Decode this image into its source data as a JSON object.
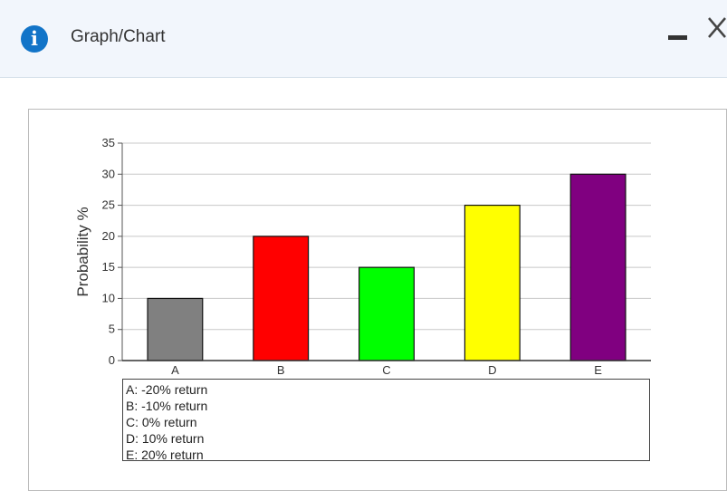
{
  "window": {
    "title": "Graph/Chart",
    "info_icon": "info-icon",
    "minimize_icon": "minimize-icon",
    "close_icon": "close-icon"
  },
  "chart_data": {
    "type": "bar",
    "categories": [
      "A",
      "B",
      "C",
      "D",
      "E"
    ],
    "values": [
      10,
      20,
      15,
      25,
      30
    ],
    "colors": [
      "#808080",
      "#ff0000",
      "#00ff00",
      "#ffff00",
      "#800080"
    ],
    "ylabel": "Probability %",
    "ylim": [
      0,
      35
    ],
    "yticks": [
      0,
      5,
      10,
      15,
      20,
      25,
      30,
      35
    ],
    "grid": true,
    "legend_entries": [
      "A: -20% return",
      "B: -10% return",
      "C: 0% return",
      "D: 10% return",
      "E: 20% return"
    ]
  }
}
